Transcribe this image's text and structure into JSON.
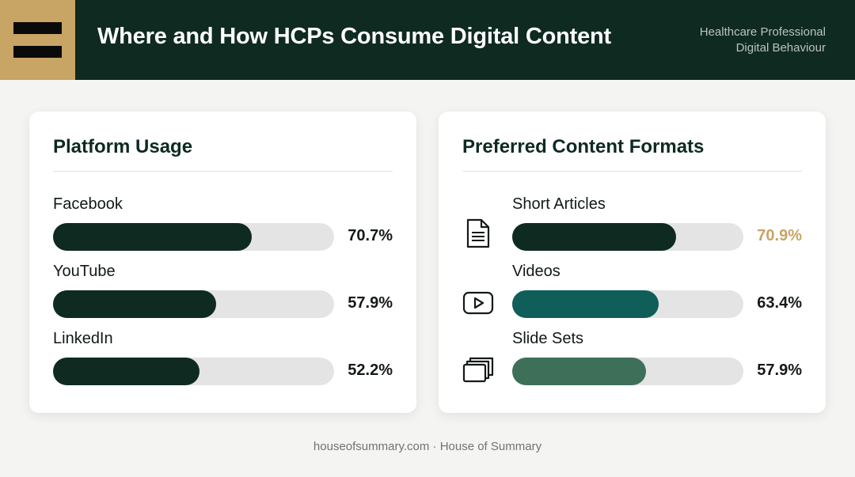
{
  "header": {
    "title": "Where and How HCPs Consume Digital Content",
    "subtitle_line1": "Healthcare Professional",
    "subtitle_line2": "Digital Behaviour",
    "colors": {
      "background": "#0f2a20",
      "logo_accent": "#c8a465"
    }
  },
  "chart_data": [
    {
      "type": "bar",
      "orientation": "horizontal",
      "title": "Platform Usage",
      "categories": [
        "Facebook",
        "YouTube",
        "LinkedIn"
      ],
      "values": [
        70.7,
        57.9,
        52.2
      ],
      "labels": [
        "70.7%",
        "57.9%",
        "52.2%"
      ],
      "colors": [
        "#0f2a20",
        "#0f2a20",
        "#0f2a20"
      ],
      "xlim": [
        0,
        100
      ]
    },
    {
      "type": "bar",
      "orientation": "horizontal",
      "title": "Preferred Content Formats",
      "categories": [
        "Short Articles",
        "Videos",
        "Slide Sets"
      ],
      "values": [
        70.9,
        63.4,
        57.9
      ],
      "labels": [
        "70.9%",
        "63.4%",
        "57.9%"
      ],
      "colors": [
        "#0f2a20",
        "#0f5e5a",
        "#3e7059"
      ],
      "label_colors": [
        "#c8a465",
        "#141a16",
        "#141a16"
      ],
      "icons": [
        "document-icon",
        "play-video-icon",
        "slide-stack-icon"
      ],
      "xlim": [
        0,
        100
      ]
    }
  ],
  "footer": {
    "text": "houseofsummary.com · House of Summary"
  }
}
